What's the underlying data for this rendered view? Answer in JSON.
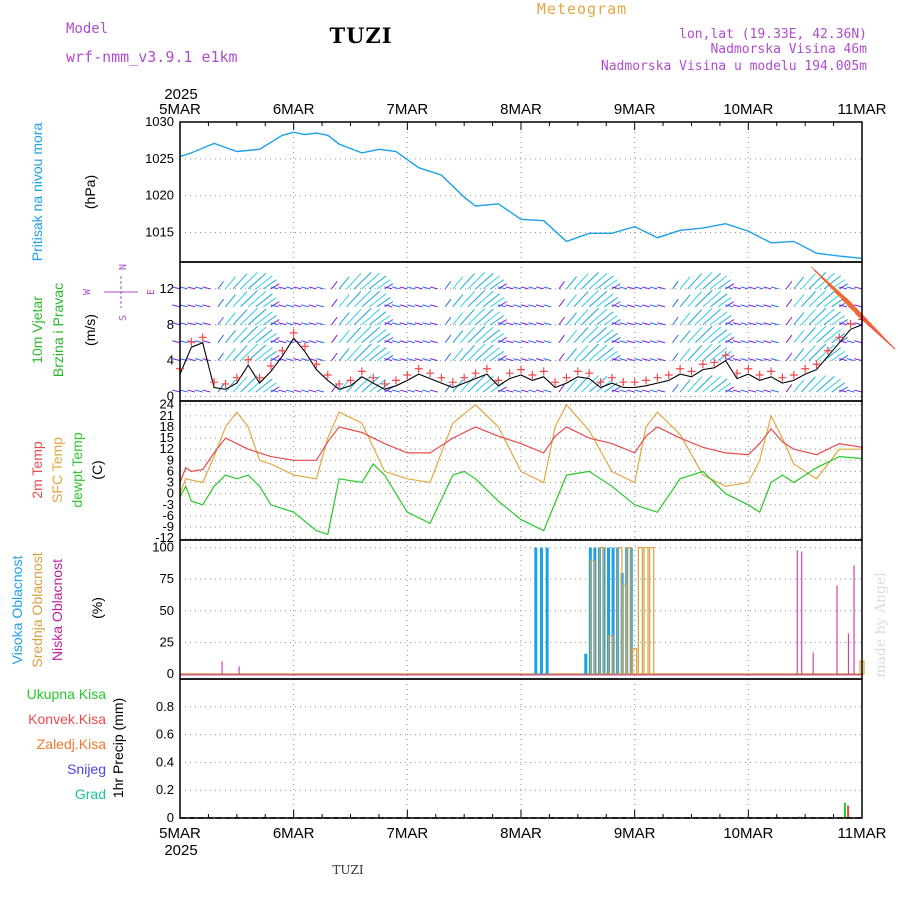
{
  "header": {
    "model_label": "Model",
    "model_name": "wrf-nmm_v3.9.1 e1km",
    "station": "TUZI",
    "meteogram": "Meteogram",
    "lonlat": "lon,lat (19.33E, 42.36N)",
    "elevation": "Nadmorska Visina 46m",
    "model_elevation": "Nadmorska Visina u modelu 194.005m",
    "footer_station": "TUZI",
    "credit": "made by Angel"
  },
  "colors": {
    "pressure": "#1ea0e6",
    "temp2m": "#e84b4b",
    "sfc": "#e0a840",
    "dewpt": "#28c828",
    "high": "#1ea0e6",
    "mid": "#d8a040",
    "low": "#c020a0",
    "purple": "#b04ccc",
    "wind_label": "#2ab82a"
  },
  "chart_data": [
    {
      "type": "line",
      "ylabel_left": "Pritisak na nivou mora",
      "unit": "(hPa)",
      "x_categories": [
        "5MAR",
        "6MAR",
        "7MAR",
        "8MAR",
        "9MAR",
        "10MAR",
        "11MAR"
      ],
      "x_year": "2025",
      "yticks": [
        1015,
        1020,
        1025,
        1030
      ],
      "ylim": [
        1011,
        1030
      ],
      "series": [
        {
          "name": "",
          "x": [
            0,
            0.1,
            0.3,
            0.5,
            0.7,
            0.9,
            1.0,
            1.1,
            1.2,
            1.3,
            1.4,
            1.6,
            1.75,
            1.9,
            2.1,
            2.3,
            2.5,
            2.6,
            2.8,
            3.0,
            3.2,
            3.4,
            3.6,
            3.8,
            4.0,
            4.2,
            4.4,
            4.6,
            4.8,
            5.0,
            5.2,
            5.4,
            5.6,
            5.8,
            6.0
          ],
          "y": [
            1025.3,
            1025.8,
            1027.1,
            1026.0,
            1026.3,
            1028.2,
            1028.6,
            1028.3,
            1028.5,
            1028.2,
            1027.0,
            1025.8,
            1026.3,
            1026.0,
            1023.8,
            1022.8,
            1019.8,
            1018.6,
            1018.9,
            1016.8,
            1016.6,
            1013.8,
            1014.9,
            1014.9,
            1015.8,
            1014.3,
            1015.3,
            1015.6,
            1016.2,
            1015.2,
            1013.6,
            1013.8,
            1012.2,
            1011.8,
            1011.5
          ]
        }
      ]
    },
    {
      "type": "line",
      "ylabel_left": [
        "10m Vjetar",
        "Brzina i Pravac"
      ],
      "unit": "(m/s)",
      "compass": {
        "n": "N",
        "s": "S",
        "e": "E",
        "w": "W"
      },
      "yticks": [
        0,
        4,
        8,
        12
      ],
      "ylim": [
        -0.5,
        15
      ],
      "series": [
        {
          "name": "",
          "x": [
            0,
            0.1,
            0.2,
            0.3,
            0.4,
            0.5,
            0.6,
            0.7,
            0.8,
            0.9,
            1.0,
            1.1,
            1.2,
            1.3,
            1.4,
            1.5,
            1.6,
            1.7,
            1.8,
            1.9,
            2.0,
            2.1,
            2.2,
            2.3,
            2.4,
            2.5,
            2.6,
            2.7,
            2.8,
            2.9,
            3.0,
            3.1,
            3.2,
            3.3,
            3.4,
            3.5,
            3.6,
            3.7,
            3.8,
            3.9,
            4.0,
            4.1,
            4.2,
            4.3,
            4.4,
            4.5,
            4.6,
            4.7,
            4.8,
            4.9,
            5.0,
            5.1,
            5.2,
            5.3,
            5.4,
            5.5,
            5.6,
            5.7,
            5.8,
            5.9,
            6.0
          ],
          "y": [
            2.5,
            5.5,
            6.0,
            1.0,
            0.8,
            1.5,
            3.5,
            1.5,
            2.8,
            4.5,
            6.5,
            5.0,
            3.0,
            1.8,
            0.8,
            1.2,
            2.2,
            1.5,
            0.8,
            1.2,
            1.8,
            2.5,
            2.0,
            1.5,
            1.0,
            1.5,
            2.0,
            2.5,
            1.2,
            2.0,
            2.4,
            1.8,
            2.2,
            1.0,
            1.5,
            2.2,
            2.0,
            1.0,
            1.5,
            1.0,
            1.0,
            1.2,
            1.5,
            1.8,
            2.5,
            2.2,
            3.0,
            3.2,
            4.0,
            2.0,
            2.5,
            1.8,
            2.2,
            1.5,
            1.8,
            2.5,
            3.0,
            4.5,
            6.0,
            7.5,
            8.0
          ]
        }
      ]
    },
    {
      "type": "line",
      "ylabel_left": [
        "2m Temp",
        "SFC Temp",
        "dewpt Temp"
      ],
      "unit": "(C)",
      "yticks": [
        -12,
        -9,
        -6,
        -3,
        0,
        3,
        6,
        9,
        12,
        15,
        18,
        21,
        24
      ],
      "ylim": [
        -12.5,
        25
      ],
      "series": [
        {
          "name": "2m Temp",
          "x": [
            0,
            0.05,
            0.1,
            0.2,
            0.3,
            0.4,
            0.5,
            0.6,
            0.8,
            1.0,
            1.2,
            1.3,
            1.4,
            1.6,
            1.8,
            2.0,
            2.2,
            2.4,
            2.6,
            2.8,
            3.0,
            3.2,
            3.3,
            3.4,
            3.6,
            3.8,
            4.0,
            4.1,
            4.2,
            4.4,
            4.6,
            4.8,
            5.0,
            5.1,
            5.2,
            5.3,
            5.4,
            5.6,
            5.8,
            6.0
          ],
          "y": [
            3,
            7,
            6,
            6.5,
            11,
            15,
            13.5,
            12,
            10,
            9,
            9,
            14,
            18,
            16.5,
            13.5,
            11,
            11,
            15,
            18,
            15.5,
            13.5,
            11,
            15.5,
            18,
            15,
            13.5,
            11,
            15.5,
            18,
            15,
            12.5,
            11,
            10.5,
            13.5,
            17.5,
            14,
            12,
            10.5,
            13.5,
            12.5
          ]
        },
        {
          "name": "SFC Temp",
          "x": [
            0,
            0.05,
            0.2,
            0.3,
            0.4,
            0.5,
            0.6,
            0.7,
            0.8,
            1.0,
            1.2,
            1.3,
            1.4,
            1.6,
            1.8,
            2.0,
            2.2,
            2.4,
            2.6,
            2.8,
            3.0,
            3.2,
            3.3,
            3.4,
            3.6,
            3.8,
            4.0,
            4.1,
            4.2,
            4.4,
            4.6,
            4.8,
            5.0,
            5.1,
            5.2,
            5.3,
            5.4,
            5.6,
            5.8,
            6.0
          ],
          "y": [
            0,
            4,
            3,
            10,
            18,
            22,
            18,
            9,
            8,
            5,
            4,
            15,
            22,
            19,
            6,
            4,
            3,
            19,
            24,
            18,
            6,
            3,
            18,
            24,
            17,
            6,
            3,
            18,
            22,
            16,
            5,
            2,
            3,
            9,
            21,
            15,
            8,
            4,
            12,
            12
          ]
        },
        {
          "name": "dewpt Temp",
          "x": [
            0,
            0.05,
            0.1,
            0.2,
            0.3,
            0.4,
            0.5,
            0.6,
            0.7,
            0.8,
            1.0,
            1.2,
            1.3,
            1.4,
            1.6,
            1.7,
            1.8,
            1.9,
            2.0,
            2.2,
            2.4,
            2.5,
            2.6,
            2.8,
            3.0,
            3.2,
            3.4,
            3.6,
            3.8,
            4.0,
            4.2,
            4.4,
            4.6,
            4.8,
            5.0,
            5.1,
            5.2,
            5.3,
            5.4,
            5.6,
            5.8,
            6.0
          ],
          "y": [
            -1,
            2,
            -2,
            -3,
            2,
            5,
            4,
            5,
            2,
            -3,
            -5,
            -10,
            -11,
            4,
            3,
            8,
            5,
            0,
            -5,
            -8,
            5,
            6,
            4,
            -2,
            -7,
            -10,
            5,
            6,
            2,
            -3,
            -5,
            4,
            6,
            0,
            -3,
            -5,
            3,
            5,
            3,
            7,
            10,
            9.5
          ]
        }
      ]
    },
    {
      "type": "bar",
      "ylabel_left": [
        "Visoka Oblacnost",
        "Srednja Oblacnost",
        "Niska Oblacnost"
      ],
      "unit": "(%)",
      "yticks": [
        0,
        25,
        50,
        75,
        100
      ],
      "ylim": [
        -4,
        106
      ],
      "series": [
        {
          "name": "Visoka Oblacnost",
          "x": [
            3.13,
            3.18,
            3.23,
            3.57,
            3.61,
            3.65,
            3.69,
            3.73,
            3.77,
            3.81,
            3.85,
            3.89,
            3.93,
            3.97
          ],
          "values": [
            100,
            100,
            100,
            16,
            100,
            100,
            100,
            100,
            100,
            100,
            100,
            80,
            100,
            100
          ]
        },
        {
          "name": "Srednja Oblacnost",
          "x": [
            3.63,
            3.71,
            3.79,
            3.87,
            3.91,
            3.95,
            4.0,
            4.05,
            4.1,
            4.15,
            6.0
          ],
          "values": [
            90,
            100,
            30,
            100,
            70,
            100,
            20,
            100,
            100,
            100,
            10
          ]
        },
        {
          "name": "Niska Oblacnost",
          "x": [
            0.37,
            0.52,
            5.43,
            5.47,
            5.57,
            5.78,
            5.88,
            5.93
          ],
          "values": [
            10,
            6,
            98,
            97,
            17,
            70,
            32,
            86
          ]
        }
      ]
    },
    {
      "type": "bar",
      "ylabel_left": [
        "Ukupna Kisa",
        "Konvek.Kisa",
        "Zaledj.Kisa",
        "Snijeg",
        "Grad"
      ],
      "unit": "1hr Precip (mm)",
      "yticks": [
        0,
        0.2,
        0.4,
        0.6,
        0.8
      ],
      "ylim": [
        0,
        1.0
      ],
      "series": [
        {
          "name": "Ukupna Kisa",
          "x": [
            5.45,
            5.85,
            5.88
          ],
          "values": [
            0.01,
            0.11,
            0.03
          ]
        },
        {
          "name": "Konvek.Kisa",
          "x": [
            5.86
          ],
          "values": [
            0.09
          ]
        }
      ]
    }
  ]
}
